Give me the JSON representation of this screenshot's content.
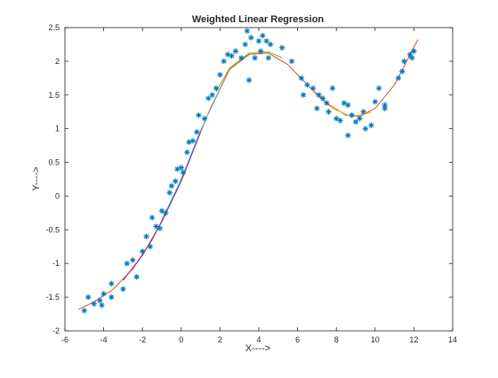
{
  "chart_data": {
    "type": "scatter",
    "title": "Weighted Linear Regression",
    "xlabel": "X---->",
    "ylabel": "Y---->",
    "xlim": [
      -6,
      14
    ],
    "ylim": [
      -2,
      2.5
    ],
    "x_ticks": [
      -6,
      -4,
      -2,
      0,
      2,
      4,
      6,
      8,
      10,
      12,
      14
    ],
    "y_ticks": [
      -2,
      -1.5,
      -1,
      -0.5,
      0,
      0.5,
      1,
      1.5,
      2,
      2.5
    ],
    "grid": false,
    "legend": "none",
    "marker": "*",
    "marker_color": "#0072BD",
    "series": [
      {
        "type": "scatter",
        "points": [
          [
            -5.0,
            -1.7
          ],
          [
            -4.8,
            -1.5
          ],
          [
            -4.5,
            -1.6
          ],
          [
            -4.2,
            -1.55
          ],
          [
            -4.1,
            -1.62
          ],
          [
            -4.0,
            -1.45
          ],
          [
            -3.6,
            -1.5
          ],
          [
            -3.6,
            -1.3
          ],
          [
            -3.0,
            -1.38
          ],
          [
            -2.8,
            -1.0
          ],
          [
            -2.5,
            -0.95
          ],
          [
            -2.3,
            -1.2
          ],
          [
            -2.0,
            -0.82
          ],
          [
            -1.8,
            -0.6
          ],
          [
            -1.6,
            -0.75
          ],
          [
            -1.5,
            -0.32
          ],
          [
            -1.3,
            -0.45
          ],
          [
            -1.1,
            -0.48
          ],
          [
            -1.0,
            -0.22
          ],
          [
            -0.8,
            -0.25
          ],
          [
            -0.6,
            0.05
          ],
          [
            -0.5,
            0.15
          ],
          [
            -0.3,
            0.22
          ],
          [
            -0.2,
            0.4
          ],
          [
            0.0,
            0.42
          ],
          [
            0.1,
            0.35
          ],
          [
            0.3,
            0.65
          ],
          [
            0.4,
            0.8
          ],
          [
            0.6,
            0.82
          ],
          [
            0.8,
            0.95
          ],
          [
            0.9,
            1.2
          ],
          [
            1.2,
            1.15
          ],
          [
            1.4,
            1.45
          ],
          [
            1.6,
            1.5
          ],
          [
            1.8,
            1.6
          ],
          [
            2.0,
            1.8
          ],
          [
            2.2,
            2.0
          ],
          [
            2.4,
            2.1
          ],
          [
            2.6,
            2.08
          ],
          [
            2.8,
            2.15
          ],
          [
            3.1,
            2.05
          ],
          [
            3.3,
            2.25
          ],
          [
            3.4,
            2.45
          ],
          [
            3.5,
            1.72
          ],
          [
            3.6,
            2.35
          ],
          [
            3.8,
            2.05
          ],
          [
            4.0,
            2.3
          ],
          [
            4.1,
            2.15
          ],
          [
            4.2,
            2.38
          ],
          [
            4.4,
            2.3
          ],
          [
            4.5,
            2.05
          ],
          [
            4.6,
            2.25
          ],
          [
            5.2,
            2.2
          ],
          [
            5.7,
            2.0
          ],
          [
            6.2,
            1.75
          ],
          [
            6.3,
            1.5
          ],
          [
            6.5,
            1.65
          ],
          [
            6.8,
            1.6
          ],
          [
            7.0,
            1.3
          ],
          [
            7.1,
            1.5
          ],
          [
            7.3,
            1.45
          ],
          [
            7.5,
            1.38
          ],
          [
            7.6,
            1.25
          ],
          [
            7.8,
            1.6
          ],
          [
            8.0,
            1.15
          ],
          [
            8.2,
            1.12
          ],
          [
            8.4,
            1.38
          ],
          [
            8.6,
            1.35
          ],
          [
            8.6,
            0.9
          ],
          [
            8.8,
            1.2
          ],
          [
            9.0,
            1.1
          ],
          [
            9.2,
            1.15
          ],
          [
            9.4,
            1.25
          ],
          [
            9.5,
            1.0
          ],
          [
            9.8,
            1.05
          ],
          [
            10.0,
            1.4
          ],
          [
            10.2,
            1.6
          ],
          [
            10.5,
            1.3
          ],
          [
            10.5,
            1.35
          ],
          [
            11.2,
            1.75
          ],
          [
            11.4,
            1.85
          ],
          [
            11.5,
            2.0
          ],
          [
            11.8,
            2.1
          ],
          [
            11.9,
            2.05
          ],
          [
            12.0,
            2.15
          ]
        ]
      },
      {
        "type": "line",
        "color": "#D95319",
        "points": [
          [
            -5.3,
            -1.68
          ],
          [
            -4.5,
            -1.57
          ],
          [
            -3.5,
            -1.38
          ],
          [
            -2.5,
            -1.08
          ],
          [
            -1.5,
            -0.65
          ],
          [
            -0.5,
            -0.08
          ],
          [
            0.5,
            0.6
          ],
          [
            1.5,
            1.3
          ],
          [
            2.5,
            1.88
          ],
          [
            3.5,
            2.1
          ],
          [
            4.5,
            2.12
          ],
          [
            5.5,
            1.95
          ],
          [
            6.5,
            1.65
          ],
          [
            7.5,
            1.38
          ],
          [
            8.5,
            1.2
          ],
          [
            9.2,
            1.18
          ],
          [
            10.0,
            1.3
          ],
          [
            11.0,
            1.65
          ],
          [
            12.2,
            2.32
          ]
        ]
      },
      {
        "type": "line",
        "color": "#77AC30",
        "points": [
          [
            1.8,
            1.55
          ],
          [
            2.5,
            1.9
          ],
          [
            3.5,
            2.12
          ],
          [
            4.5,
            2.14
          ],
          [
            5.2,
            2.05
          ]
        ]
      },
      {
        "type": "line",
        "color": "#4DBEEE",
        "points": [
          [
            -1.0,
            -0.35
          ],
          [
            0.0,
            0.25
          ],
          [
            1.0,
            0.98
          ],
          [
            2.0,
            1.58
          ]
        ]
      },
      {
        "type": "line",
        "color": "#7E2F8E",
        "points": [
          [
            -3.0,
            -1.25
          ],
          [
            -2.0,
            -0.88
          ],
          [
            -1.0,
            -0.38
          ],
          [
            0.0,
            0.22
          ],
          [
            1.0,
            0.95
          ]
        ]
      },
      {
        "type": "line",
        "color": "#EDB120",
        "points": [
          [
            6.8,
            1.55
          ],
          [
            7.8,
            1.3
          ],
          [
            8.8,
            1.18
          ],
          [
            9.8,
            1.24
          ]
        ]
      }
    ]
  }
}
